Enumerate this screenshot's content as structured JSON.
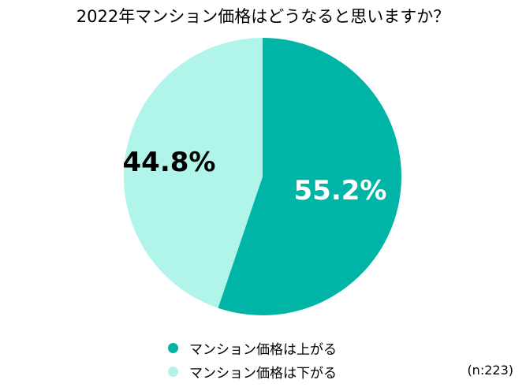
{
  "chart_data": {
    "type": "pie",
    "title": "2022年マンション価格はどうなると思いますか？",
    "slices": [
      {
        "label": "マンション価格は上がる",
        "value": 55.2,
        "display": "55.2%",
        "color": "#00b5a6",
        "text_color": "#ffffff"
      },
      {
        "label": "マンション価格は下がる",
        "value": 44.8,
        "display": "44.8%",
        "color": "#b1f4ea",
        "text_color": "#000000"
      }
    ],
    "start_angle_deg": 0,
    "direction": "clockwise",
    "legend_position": "bottom",
    "note": "(n:223)"
  },
  "legend": {
    "items": [
      {
        "label": "マンション価格は上がる",
        "color": "#00b5a6"
      },
      {
        "label": "マンション価格は下がる",
        "color": "#b1f4ea"
      }
    ]
  }
}
